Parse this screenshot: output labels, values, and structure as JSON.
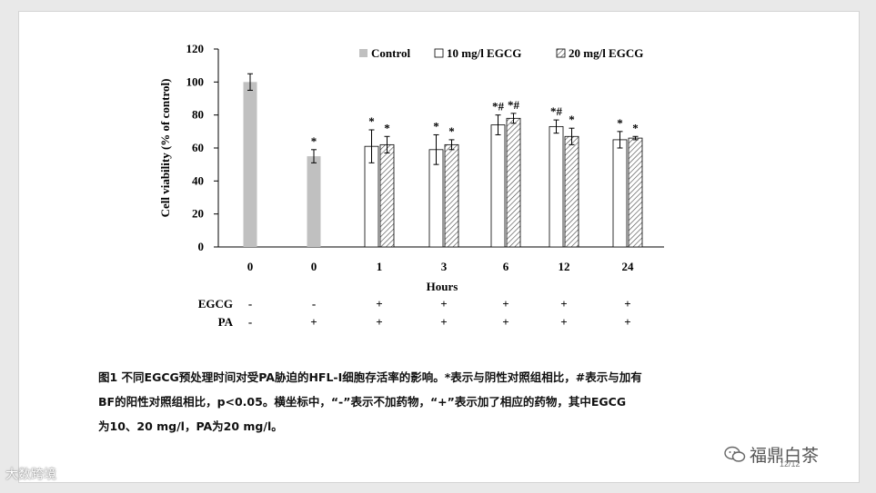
{
  "chart_data": {
    "type": "bar",
    "ylabel": "Cell viability (% of control)",
    "xlabel": "Hours",
    "ylim": [
      0,
      120
    ],
    "yticks": [
      0,
      20,
      40,
      60,
      80,
      100,
      120
    ],
    "legend_position": "top-right",
    "legend": [
      {
        "name": "Control",
        "style": "gray"
      },
      {
        "name": "10 mg/l EGCG",
        "style": "white"
      },
      {
        "name": "20 mg/l EGCG",
        "style": "hatched"
      }
    ],
    "colors": {
      "gray": "#c0c0c0",
      "white": "#ffffff",
      "hatch": "#444444",
      "axis": "#000000"
    },
    "groups": [
      {
        "tick": "0",
        "egcg": "-",
        "pa": "-",
        "bars": [
          {
            "style": "gray",
            "value": 100,
            "err": 5,
            "label": ""
          }
        ]
      },
      {
        "tick": "0",
        "egcg": "-",
        "pa": "+",
        "bars": [
          {
            "style": "gray",
            "value": 55,
            "err": 4,
            "label": "*"
          }
        ]
      },
      {
        "tick": "1",
        "egcg": "+",
        "pa": "+",
        "bars": [
          {
            "style": "white",
            "value": 61,
            "err": 10,
            "label": "*"
          },
          {
            "style": "hatched",
            "value": 62,
            "err": 5,
            "label": "*"
          }
        ]
      },
      {
        "tick": "3",
        "egcg": "+",
        "pa": "+",
        "bars": [
          {
            "style": "white",
            "value": 59,
            "err": 9,
            "label": "*"
          },
          {
            "style": "hatched",
            "value": 62,
            "err": 3,
            "label": "*"
          }
        ]
      },
      {
        "tick": "6",
        "egcg": "+",
        "pa": "+",
        "bars": [
          {
            "style": "white",
            "value": 74,
            "err": 6,
            "label": "*#"
          },
          {
            "style": "hatched",
            "value": 78,
            "err": 3,
            "label": "*#"
          }
        ]
      },
      {
        "tick": "12",
        "egcg": "+",
        "pa": "+",
        "bars": [
          {
            "style": "white",
            "value": 73,
            "err": 4,
            "label": "*#"
          },
          {
            "style": "hatched",
            "value": 67,
            "err": 5,
            "label": "*"
          }
        ]
      },
      {
        "tick": "24",
        "egcg": "+",
        "pa": "+",
        "bars": [
          {
            "style": "white",
            "value": 65,
            "err": 5,
            "label": "*"
          },
          {
            "style": "hatched",
            "value": 66,
            "err": 1,
            "label": "*"
          }
        ]
      }
    ],
    "row_labels": {
      "egcg": "EGCG",
      "pa": "PA"
    }
  },
  "caption": {
    "lines": [
      "图1 不同EGCG预处理时间对受PA胁迫的HFL-I细胞存活率的影响。*表示与阴性对照组相比，#表示与加有",
      "BF的阳性对照组相比，p<0.05。横坐标中，“-”表示不加药物，“+”表示加了相应的药物，其中EGCG",
      "为10、20 mg/l，PA为20 mg/l。"
    ]
  },
  "watermark": {
    "left": "大数跨境",
    "right": "福鼎白茶",
    "page": "12/12"
  }
}
